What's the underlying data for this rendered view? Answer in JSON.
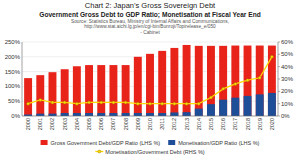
{
  "chart_data": {
    "type": "bar",
    "title": "Chart 2: Japan’s Gross Sovereign Debt",
    "subtitle": "Government Gross Debt to GDP Ratio; Monetisation at Fiscal Year End",
    "annotations": [
      "Source: Statistics Bureau, Ministry of Internal Affairs and Communications,",
      "http://www.stat.aichi.lg.jp/en/cgi-bin/Bunroji/Topirelease_e/050",
      "- Cabinet"
    ],
    "categories": [
      "2000",
      "2001",
      "2002",
      "2003",
      "2004",
      "2005",
      "2006",
      "2007",
      "2008",
      "2009",
      "2010",
      "2011",
      "2012",
      "2013",
      "2014",
      "2015",
      "2016",
      "2017",
      "2018",
      "2019",
      "2020"
    ],
    "series": [
      {
        "name": "Gross Government Debt/GDP Ratio (LHS %)",
        "type": "bar",
        "color": "#e8231a",
        "values": [
          128,
          138,
          148,
          158,
          168,
          172,
          172,
          172,
          172,
          200,
          210,
          220,
          230,
          240,
          237,
          237,
          237,
          238,
          238,
          238,
          238
        ]
      },
      {
        "name": "Monetisation/GDP Ratio (LHS %)",
        "type": "bar",
        "color": "#1f4e99",
        "values": [
          5,
          8,
          8,
          10,
          10,
          10,
          10,
          10,
          10,
          10,
          10,
          10,
          12,
          13,
          25,
          40,
          55,
          62,
          68,
          73,
          78
        ]
      },
      {
        "name": "Monetisation/Government Debt (RHS %)",
        "type": "line",
        "axis": "y2",
        "color": "#ffd700",
        "marker": "circle",
        "values": [
          10,
          13,
          11,
          11,
          10,
          11,
          11,
          11,
          11,
          10,
          10,
          10,
          10,
          10,
          10,
          15,
          22,
          26,
          29,
          31,
          48
        ]
      }
    ],
    "stacked": false,
    "ylim": [
      0,
      250
    ],
    "yticks": [
      {
        "value": 0,
        "label": "0%"
      },
      {
        "value": 50,
        "label": "50%"
      },
      {
        "value": 100,
        "label": "100%"
      },
      {
        "value": 150,
        "label": "150%"
      },
      {
        "value": 200,
        "label": "200%"
      },
      {
        "value": 250,
        "label": "250%"
      }
    ],
    "y2lim": [
      0,
      60
    ],
    "y2ticks": [
      {
        "value": 0,
        "label": "0%"
      },
      {
        "value": 10,
        "label": "10%"
      },
      {
        "value": 20,
        "label": "20%"
      },
      {
        "value": 30,
        "label": "30%"
      },
      {
        "value": 40,
        "label": "40%"
      },
      {
        "value": 50,
        "label": "50%"
      },
      {
        "value": 60,
        "label": "60%"
      }
    ],
    "grid": true,
    "legend": "bottom"
  }
}
